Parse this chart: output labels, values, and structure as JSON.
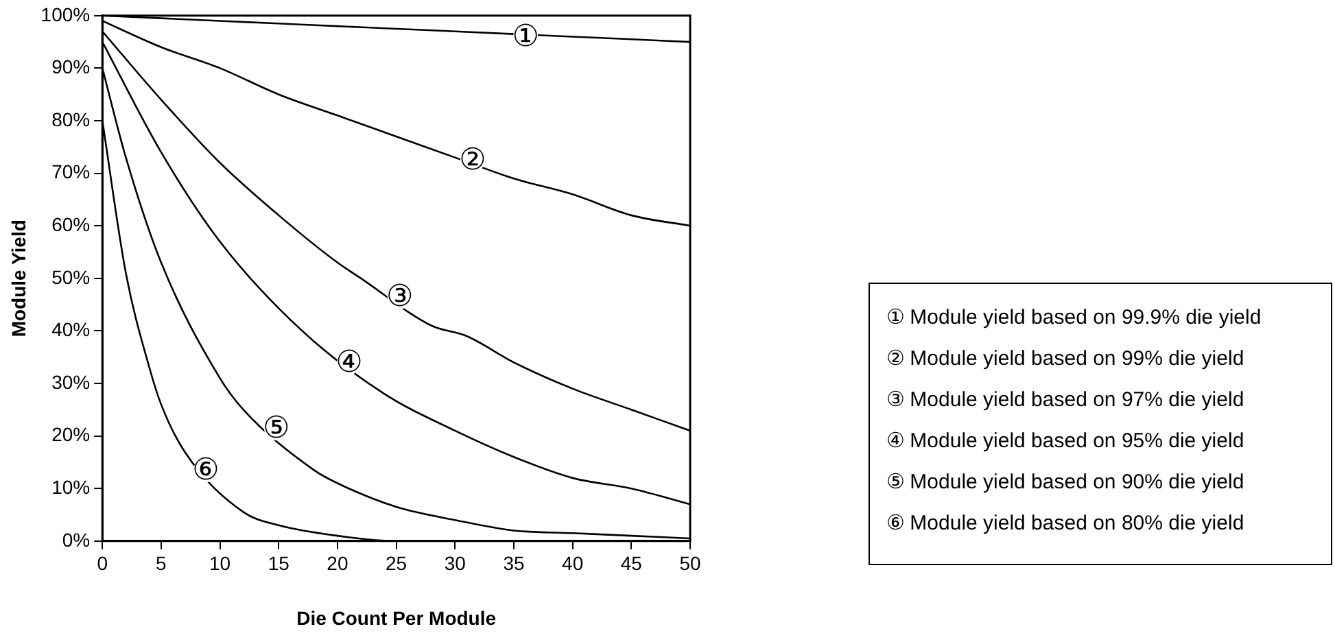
{
  "chart_data": {
    "type": "line",
    "xlabel": "Die Count Per Module",
    "ylabel": "Module Yield",
    "xlim": [
      0,
      50
    ],
    "ylim": [
      0,
      100
    ],
    "xticks": [
      0,
      5,
      10,
      15,
      20,
      25,
      30,
      35,
      40,
      45,
      50
    ],
    "yticks": [
      {
        "value": 0,
        "label": "0%"
      },
      {
        "value": 10,
        "label": "10%"
      },
      {
        "value": 20,
        "label": "20%"
      },
      {
        "value": 30,
        "label": "30%"
      },
      {
        "value": 40,
        "label": "40%"
      },
      {
        "value": 50,
        "label": "50%"
      },
      {
        "value": 60,
        "label": "60%"
      },
      {
        "value": 70,
        "label": "70%"
      },
      {
        "value": 80,
        "label": "80%"
      },
      {
        "value": 90,
        "label": "90%"
      },
      {
        "value": 100,
        "label": "100%"
      }
    ],
    "grid": false,
    "legend": "right",
    "marker": "none",
    "line_style": "solid",
    "series": [
      {
        "name": "① Module yield based on 99.9% die yield",
        "color": "#000000",
        "x": [
          0,
          5,
          10,
          15,
          20,
          25,
          30,
          40,
          45,
          50
        ],
        "values": [
          100,
          99.5,
          99,
          98.5,
          98,
          97.5,
          97,
          96,
          95.5,
          95
        ]
      },
      {
        "name": "② Module yield based on 99% die yield",
        "color": "#000000",
        "x": [
          0,
          5,
          10,
          15,
          20,
          25,
          30,
          35,
          40,
          45,
          50
        ],
        "values": [
          99,
          94,
          90,
          85,
          81,
          77,
          73,
          69,
          66,
          62,
          60
        ]
      },
      {
        "name": "③ Module yield based on 97% die yield",
        "color": "#000000",
        "x": [
          0,
          5,
          10,
          15,
          20,
          22,
          28,
          31,
          35,
          40,
          45,
          50
        ],
        "values": [
          97,
          84,
          72,
          62,
          53,
          50,
          41,
          39,
          34,
          29,
          25,
          21
        ]
      },
      {
        "name": "④ Module yield based on 95% die yield",
        "color": "#000000",
        "x": [
          0,
          5,
          10,
          17,
          24,
          30,
          35,
          40,
          45,
          50
        ],
        "values": [
          95,
          74,
          57,
          40,
          28,
          21,
          16,
          12,
          10,
          7
        ]
      },
      {
        "name": "⑤ Module yield based on 90% die yield",
        "color": "#000000",
        "x": [
          0,
          2,
          5,
          10,
          12,
          18,
          20,
          25,
          30,
          35,
          40,
          45,
          50
        ],
        "values": [
          90,
          73,
          53,
          31,
          25,
          13.5,
          11,
          6.5,
          4,
          2,
          1.5,
          1,
          0.5
        ]
      },
      {
        "name": "⑥ Module yield based on 80% die yield",
        "color": "#000000",
        "x": [
          0,
          2,
          4,
          5,
          7,
          12,
          15,
          20,
          25,
          30,
          40,
          50
        ],
        "values": [
          80,
          51,
          33,
          26,
          17,
          5.5,
          3,
          1,
          0,
          0,
          0,
          0
        ]
      }
    ],
    "annotations": [
      {
        "text": "①",
        "x": 36,
        "y": 96
      },
      {
        "text": "②",
        "x": 31.5,
        "y": 72.5
      },
      {
        "text": "③",
        "x": 25.3,
        "y": 46.5
      },
      {
        "text": "④",
        "x": 21,
        "y": 34
      },
      {
        "text": "⑤",
        "x": 14.8,
        "y": 21.5
      },
      {
        "text": "⑥",
        "x": 8.8,
        "y": 13.5
      }
    ]
  }
}
